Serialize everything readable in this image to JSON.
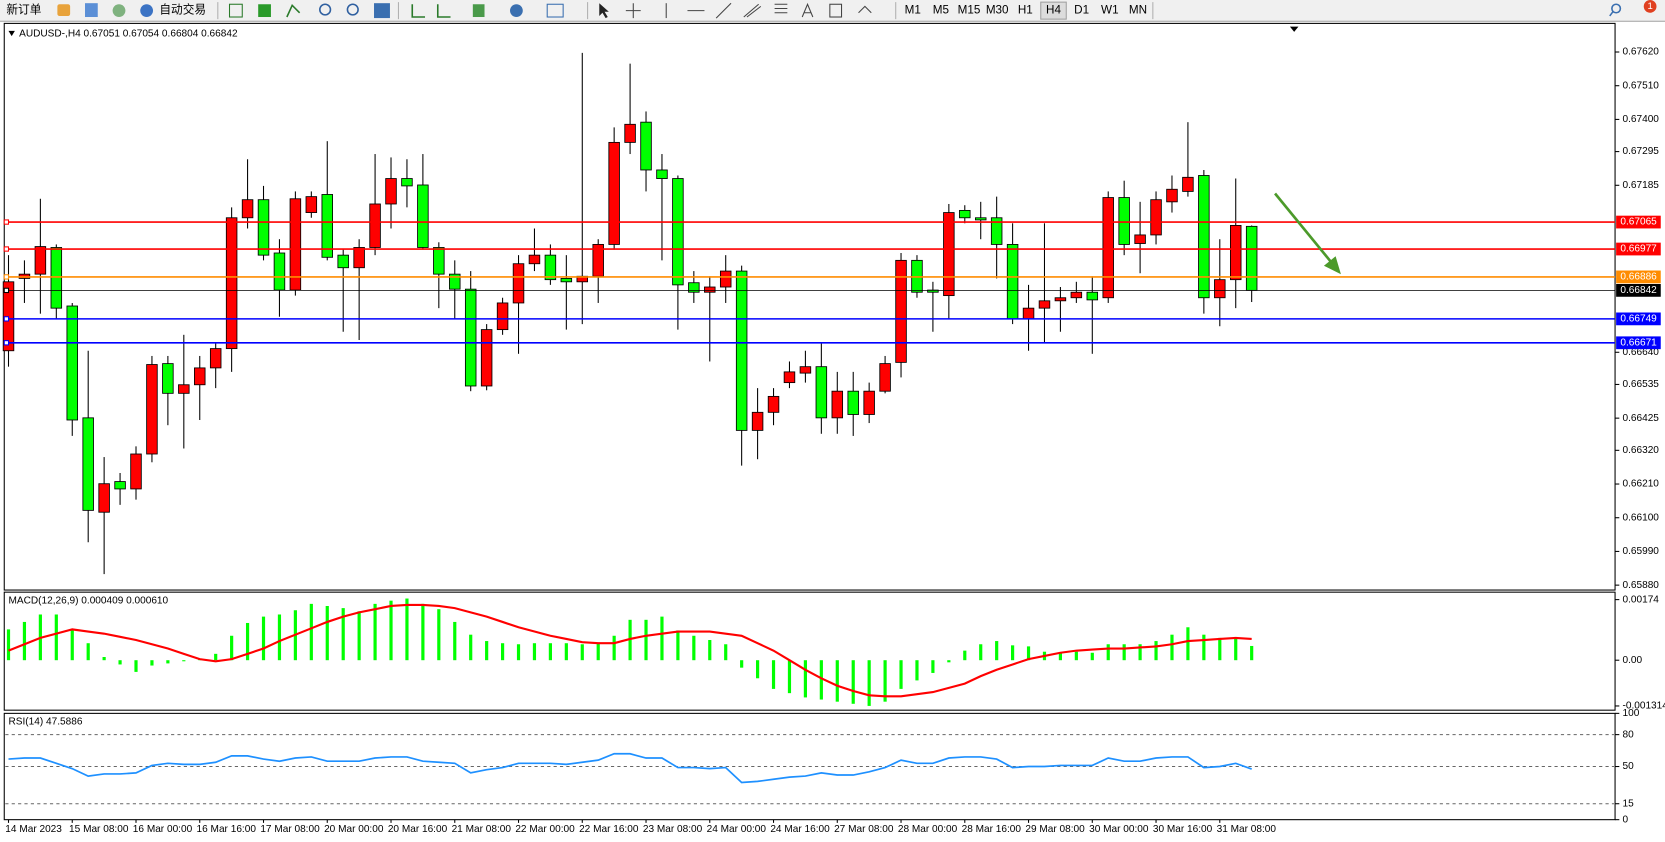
{
  "toolbar": {
    "new_order": "新订单",
    "auto_trading": "自动交易",
    "timeframes": [
      "M1",
      "M5",
      "M15",
      "M30",
      "H1",
      "H4",
      "D1",
      "W1",
      "MN"
    ],
    "notifications": 1
  },
  "chart_data": [
    {
      "type": "candlestick",
      "title": "AUDUSD-,H4 0.67051 0.67054 0.66804 0.66842",
      "categories": [
        "14 Mar 2023",
        null,
        null,
        null,
        "15 Mar 08:00",
        null,
        null,
        null,
        "16 Mar 00:00",
        null,
        null,
        null,
        "16 Mar 16:00",
        null,
        null,
        null,
        "17 Mar 08:00",
        null,
        null,
        null,
        "20 Mar 00:00",
        null,
        null,
        null,
        "20 Mar 16:00",
        null,
        null,
        null,
        "21 Mar 08:00",
        null,
        null,
        null,
        "22 Mar 00:00",
        null,
        null,
        null,
        "22 Mar 16:00",
        null,
        null,
        null,
        "23 Mar 08:00",
        null,
        null,
        null,
        "24 Mar 00:00",
        null,
        null,
        null,
        "24 Mar 16:00",
        null,
        null,
        null,
        "27 Mar 08:00",
        null,
        null,
        null,
        "28 Mar 00:00",
        null,
        null,
        null,
        "28 Mar 16:00",
        null,
        null,
        null,
        "29 Mar 08:00",
        null,
        null,
        null,
        "30 Mar 00:00",
        null,
        null,
        null,
        "30 Mar 16:00",
        null,
        null,
        null,
        "31 Mar 08:00",
        null,
        null
      ],
      "open": [
        0.66645,
        0.66881,
        0.66895,
        0.66982,
        0.66791,
        0.66426,
        0.66118,
        0.66218,
        0.66194,
        0.66308,
        0.66603,
        0.66506,
        0.66534,
        0.66589,
        0.66652,
        0.67079,
        0.67138,
        0.66964,
        0.66843,
        0.67096,
        0.67155,
        0.66957,
        0.66916,
        0.66982,
        0.67124,
        0.67207,
        0.67186,
        0.66982,
        0.66895,
        0.66846,
        0.6653,
        0.66714,
        0.66801,
        0.66929,
        0.66957,
        0.66881,
        0.6687,
        0.66888,
        0.66992,
        0.67325,
        0.67391,
        0.67235,
        0.67207,
        0.66867,
        0.66836,
        0.66853,
        0.66905,
        0.66385,
        0.66444,
        0.66541,
        0.66572,
        0.66593,
        0.66426,
        0.66513,
        0.66437,
        0.66513,
        0.66607,
        0.6694,
        0.66843,
        0.66825,
        0.67103,
        0.67079,
        0.67079,
        0.66992,
        0.66749,
        0.66784,
        0.66808,
        0.66818,
        0.66836,
        0.66818,
        0.67145,
        0.66995,
        0.67023,
        0.67131,
        0.67165,
        0.67217,
        0.66818,
        0.66877,
        0.67051
      ],
      "high": [
        0.66957,
        0.6694,
        0.67141,
        0.66992,
        0.66801,
        0.66645,
        0.66298,
        0.66246,
        0.66333,
        0.66628,
        0.66628,
        0.66697,
        0.66628,
        0.66673,
        0.67113,
        0.6727,
        0.67183,
        0.67009,
        0.67165,
        0.67165,
        0.67329,
        0.66975,
        0.67009,
        0.67287,
        0.67276,
        0.6727,
        0.67287,
        0.66999,
        0.6694,
        0.66905,
        0.66732,
        0.66818,
        0.66957,
        0.67044,
        0.66992,
        0.66957,
        0.67617,
        0.67009,
        0.67374,
        0.67582,
        0.67426,
        0.67287,
        0.67217,
        0.66905,
        0.66888,
        0.66957,
        0.66923,
        0.66523,
        0.66523,
        0.6661,
        0.66645,
        0.66673,
        0.66576,
        0.66576,
        0.66541,
        0.66628,
        0.66964,
        0.66957,
        0.6687,
        0.67124,
        0.6712,
        0.67131,
        0.67148,
        0.67061,
        0.6686,
        0.67061,
        0.66853,
        0.6687,
        0.66888,
        0.67165,
        0.672,
        0.67131,
        0.67165,
        0.67217,
        0.67391,
        0.67235,
        0.67009,
        0.67207,
        0.67054
      ],
      "low": [
        0.66593,
        0.66801,
        0.66766,
        0.66749,
        0.66367,
        0.6602,
        0.65916,
        0.66142,
        0.66159,
        0.66281,
        0.66402,
        0.66326,
        0.66419,
        0.66523,
        0.66576,
        0.67044,
        0.6694,
        0.66756,
        0.66825,
        0.67079,
        0.6694,
        0.66707,
        0.6668,
        0.66957,
        0.67044,
        0.67113,
        0.66975,
        0.66784,
        0.66749,
        0.66513,
        0.66516,
        0.66697,
        0.66635,
        0.66905,
        0.6686,
        0.66714,
        0.66732,
        0.66801,
        0.66975,
        0.67287,
        0.67165,
        0.6694,
        0.66714,
        0.66801,
        0.6661,
        0.66801,
        0.6627,
        0.66291,
        0.66402,
        0.66523,
        0.66541,
        0.66374,
        0.66374,
        0.66367,
        0.66409,
        0.66506,
        0.66558,
        0.66818,
        0.66707,
        0.66749,
        0.67061,
        0.67009,
        0.66881,
        0.66732,
        0.66645,
        0.66673,
        0.66707,
        0.66801,
        0.66635,
        0.66801,
        0.66957,
        0.66898,
        0.66992,
        0.67096,
        0.67148,
        0.66766,
        0.66725,
        0.66784,
        0.66804
      ],
      "close": [
        0.6687,
        0.66895,
        0.66985,
        0.66784,
        0.66419,
        0.66124,
        0.66211,
        0.66194,
        0.66308,
        0.666,
        0.66506,
        0.66534,
        0.66589,
        0.66652,
        0.67079,
        0.67138,
        0.66957,
        0.66843,
        0.67141,
        0.67148,
        0.6695,
        0.66916,
        0.66982,
        0.67124,
        0.67207,
        0.67183,
        0.66982,
        0.66895,
        0.66846,
        0.6653,
        0.66714,
        0.66801,
        0.66929,
        0.66957,
        0.66877,
        0.6687,
        0.66888,
        0.66992,
        0.67325,
        0.67384,
        0.67235,
        0.67207,
        0.6686,
        0.66836,
        0.66853,
        0.66905,
        0.66385,
        0.66444,
        0.66496,
        0.66576,
        0.66593,
        0.66426,
        0.66513,
        0.66437,
        0.66513,
        0.66603,
        0.6694,
        0.66836,
        0.66836,
        0.67096,
        0.67079,
        0.67072,
        0.66992,
        0.66749,
        0.66784,
        0.66808,
        0.66818,
        0.66836,
        0.66811,
        0.67145,
        0.66992,
        0.67023,
        0.67138,
        0.67172,
        0.67211,
        0.66818,
        0.66877,
        0.67054,
        0.66842
      ],
      "up_color": "#ff0000",
      "down_color": "#00ff00",
      "ylim": [
        0.65864,
        0.67703
      ],
      "yticks": [
        {
          "value": 0.6762,
          "label": "0.67620"
        },
        {
          "value": 0.6751,
          "label": "0.67510"
        },
        {
          "value": 0.674,
          "label": "0.67400"
        },
        0.67295,
        0.67185,
        {
          "value": 0.6664,
          "label": "0.66640"
        },
        0.66535,
        0.66425,
        {
          "value": 0.6632,
          "label": "0.66320"
        },
        {
          "value": 0.6621,
          "label": "0.66210"
        },
        {
          "value": 0.661,
          "label": "0.66100"
        },
        {
          "value": 0.6599,
          "label": "0.65990"
        },
        {
          "value": 0.6588,
          "label": "0.65880"
        }
      ],
      "levels": [
        {
          "value": 0.67065,
          "color": "#ff0000"
        },
        {
          "value": 0.66977,
          "color": "#ff0000"
        },
        {
          "value": 0.66886,
          "color": "#ff8c00"
        },
        {
          "value": 0.66749,
          "color": "#0000ff"
        },
        {
          "value": 0.66671,
          "color": "#0000ff"
        },
        {
          "value": 0.66842,
          "color": "#000000"
        }
      ]
    },
    {
      "type": "macd",
      "title": "MACD(12,26,9) 0.000409 0.000610",
      "values": [
        0.000885,
        0.001099,
        0.001313,
        0.001313,
        0.000885,
        0.000488,
        9.2e-05,
        -0.000122,
        -0.000336,
        -0.000153,
        -9.2e-05,
        -3.1e-05,
        3.1e-05,
        0.000183,
        0.000702,
        0.001069,
        0.001252,
        0.001313,
        0.001435,
        0.001618,
        0.001557,
        0.001496,
        0.001404,
        0.001618,
        0.00171,
        0.001771,
        0.001618,
        0.001465,
        0.001099,
        0.000733,
        0.00055,
        0.000488,
        0.000458,
        0.000488,
        0.000488,
        0.000488,
        0.000458,
        0.000488,
        0.000702,
        0.00116,
        0.00116,
        0.001252,
        0.000855,
        0.000702,
        0.00058,
        0.000458,
        -0.000214,
        -0.000519,
        -0.000824,
        -0.000946,
        -0.001069,
        -0.00113,
        -0.001191,
        -0.001252,
        -0.001313,
        -0.001191,
        -0.000824,
        -0.00058,
        -0.000366,
        -6.1e-05,
        0.000275,
        0.000458,
        0.00055,
        0.000427,
        0.000397,
        0.000244,
        0.000214,
        0.000244,
        0.000214,
        0.000458,
        0.000458,
        0.000458,
        0.00055,
        0.000733,
        0.000946,
        0.000733,
        0.000641,
        0.000641,
        0.000409
      ],
      "color": "#00ff00",
      "signal": [
        0.000275,
        0.000458,
        0.000641,
        0.000763,
        0.000885,
        0.000824,
        0.000763,
        0.000672,
        0.00058,
        0.000458,
        0.000336,
        0.000183,
        3.1e-05,
        -3.1e-05,
        3.1e-05,
        0.000183,
        0.000336,
        0.00055,
        0.000733,
        0.000916,
        0.001099,
        0.001252,
        0.001374,
        0.001465,
        0.001557,
        0.001588,
        0.001588,
        0.001557,
        0.001496,
        0.001374,
        0.001252,
        0.001099,
        0.000946,
        0.000824,
        0.000702,
        0.000611,
        0.000519,
        0.000488,
        0.000488,
        0.000611,
        0.000702,
        0.000763,
        0.000824,
        0.000824,
        0.000824,
        0.000763,
        0.000702,
        0.000488,
        0.000275,
        0,
        -0.000275,
        -0.000519,
        -0.000733,
        -0.000885,
        -0.001007,
        -0.001038,
        -0.001038,
        -0.000977,
        -0.000916,
        -0.000794,
        -0.000672,
        -0.000458,
        -0.000275,
        -0.000122,
        3.1e-05,
        0.000122,
        0.000214,
        0.000275,
        0.000305,
        0.000336,
        0.000336,
        0.000366,
        0.000397,
        0.000458,
        0.00055,
        0.00058,
        0.000611,
        0.000641,
        0.00061
      ],
      "signal_color": "#ff0000",
      "ylim": [
        -0.001435,
        0.001954
      ],
      "yticks": [
        0.00174,
        {
          "value": 0,
          "label": "0.00"
        },
        -0.001314
      ]
    },
    {
      "type": "line",
      "title": "RSI(14) 47.5886",
      "values": [
        57,
        58,
        58,
        53,
        48,
        41,
        43,
        43,
        44,
        51,
        53,
        52,
        52,
        54,
        60,
        60,
        57,
        55,
        58,
        59,
        55,
        55,
        55,
        58,
        59,
        59,
        55,
        54,
        53,
        44,
        47,
        49,
        53,
        53,
        53,
        52,
        54,
        56,
        62,
        62,
        58,
        58,
        49,
        49,
        48,
        49,
        35,
        36,
        38,
        40,
        41,
        44,
        42,
        42,
        45,
        49,
        56,
        53,
        53,
        58,
        59,
        59,
        57,
        49,
        50,
        50,
        51,
        51,
        51,
        58,
        55,
        55,
        58,
        59,
        59,
        49,
        50,
        53,
        47.5886
      ],
      "color": "#1e90ff",
      "ylim": [
        0,
        100
      ],
      "yticks": [
        0,
        15,
        50,
        80,
        100
      ]
    }
  ]
}
